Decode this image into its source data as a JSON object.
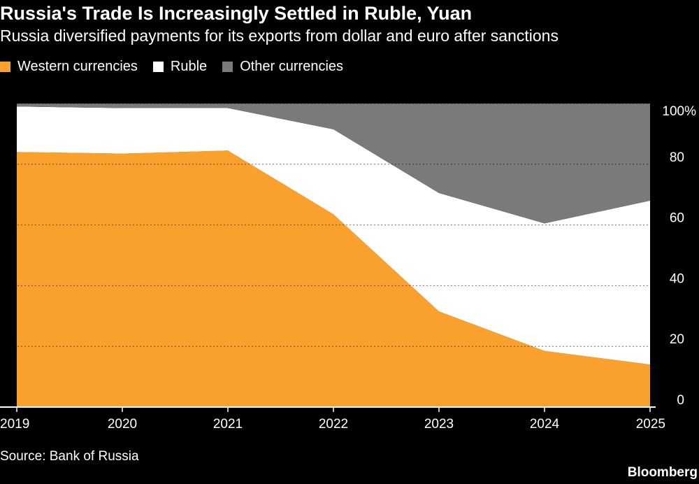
{
  "header": {
    "title": "Russia's Trade Is Increasingly Settled in Ruble, Yuan",
    "subtitle": "Russia diversified payments for its exports from dollar and euro after sanctions"
  },
  "legend": {
    "items": [
      {
        "label": "Western currencies",
        "color": "#f9a12c"
      },
      {
        "label": "Ruble",
        "color": "#ffffff"
      },
      {
        "label": "Other currencies",
        "color": "#7a7a7a"
      }
    ]
  },
  "footer": {
    "source": "Source: Bank of Russia",
    "brand": "Bloomberg"
  },
  "chart_data": {
    "type": "area",
    "stacked": true,
    "x": [
      "2019",
      "2020",
      "2021",
      "2022",
      "2023",
      "2024",
      "2025"
    ],
    "series": [
      {
        "name": "Western currencies",
        "color": "#f9a12c",
        "values": [
          84,
          83.5,
          84.5,
          63.5,
          31.5,
          18.5,
          14
        ]
      },
      {
        "name": "Ruble",
        "color": "#ffffff",
        "values": [
          15,
          15,
          14,
          28,
          39,
          42,
          54
        ]
      },
      {
        "name": "Other currencies",
        "color": "#7a7a7a",
        "values": [
          1,
          1.5,
          1.5,
          8.5,
          29.5,
          39.5,
          32
        ]
      }
    ],
    "ylim": [
      0,
      100
    ],
    "yticks": [
      0,
      20,
      40,
      60,
      80,
      100
    ],
    "ytick_labels": [
      "0",
      "20",
      "40",
      "60",
      "80",
      "100%"
    ],
    "y_axis_position": "right",
    "grid": true
  }
}
